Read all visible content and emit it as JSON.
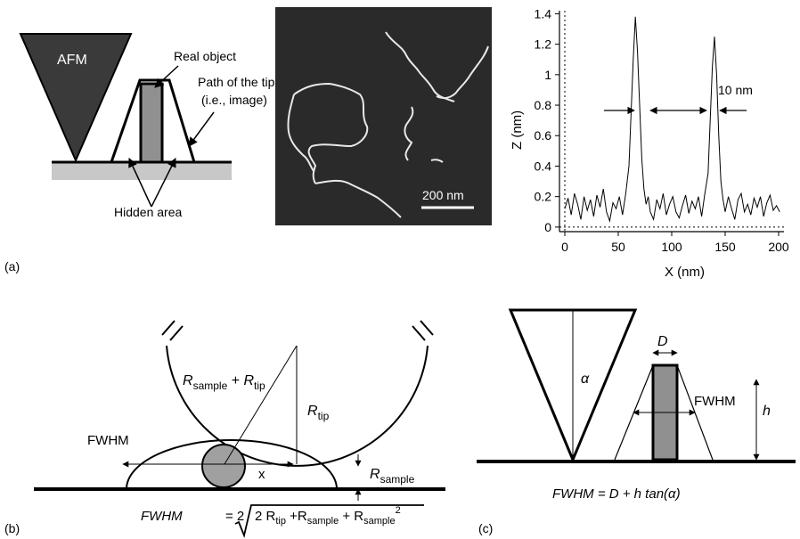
{
  "panel_labels": {
    "a": "(a)",
    "b": "(b)",
    "c": "(c)"
  },
  "panel_a": {
    "afm_label": "AFM",
    "real_object": "Real object",
    "path_of_tip_line1": "Path of the tip",
    "path_of_tip_line2": "(i.e., image)",
    "hidden_area": "Hidden area",
    "scale_bar": "200 nm",
    "profile_annotation": "10 nm",
    "colors": {
      "afm_tip": "#3a3a3a",
      "object": "#909090",
      "substrate": "#c8c8c8",
      "image_bg": "#2a2a2a",
      "strand": "#e6e6e6"
    }
  },
  "chart_data": {
    "type": "line",
    "title": "",
    "xlabel": "X (nm)",
    "ylabel": "Z (nm)",
    "xlim": [
      -5,
      205
    ],
    "ylim": [
      -0.03,
      1.42
    ],
    "xticks": [
      "0",
      "50",
      "100",
      "150",
      "200"
    ],
    "yticks": [
      "0",
      "0.2",
      "0.4",
      "0.6",
      "0.8",
      "1",
      "1.2",
      "1.4"
    ],
    "grid": false,
    "dotted_reference_lines": [
      "y=0",
      "x=0"
    ],
    "series": [
      {
        "x": [
          0,
          3,
          6,
          9,
          12,
          15,
          18,
          21,
          24,
          27,
          30,
          33,
          36,
          39,
          42,
          45,
          48,
          51,
          54,
          57,
          60,
          62,
          64,
          66,
          68,
          70,
          72,
          74,
          76,
          78,
          80,
          83,
          86,
          89,
          92,
          95,
          98,
          101,
          104,
          107,
          110,
          113,
          116,
          119,
          122,
          125,
          128,
          131,
          134,
          136,
          138,
          140,
          142,
          144,
          146,
          148,
          150,
          153,
          156,
          159,
          162,
          165,
          168,
          171,
          174,
          177,
          180,
          183,
          186,
          189,
          192,
          195,
          198,
          201
        ],
        "values": [
          0.12,
          0.19,
          0.08,
          0.22,
          0.15,
          0.05,
          0.2,
          0.11,
          0.18,
          0.07,
          0.21,
          0.13,
          0.25,
          0.1,
          0.04,
          0.16,
          0.12,
          0.2,
          0.08,
          0.22,
          0.4,
          0.75,
          1.1,
          1.38,
          1.15,
          0.8,
          0.45,
          0.25,
          0.15,
          0.2,
          0.1,
          0.05,
          0.18,
          0.12,
          0.22,
          0.08,
          0.15,
          0.2,
          0.1,
          0.06,
          0.14,
          0.21,
          0.09,
          0.17,
          0.12,
          0.2,
          0.07,
          0.22,
          0.35,
          0.7,
          1.05,
          1.25,
          1.0,
          0.6,
          0.3,
          0.18,
          0.1,
          0.2,
          0.12,
          0.05,
          0.18,
          0.22,
          0.1,
          0.15,
          0.08,
          0.19,
          0.13,
          0.2,
          0.07,
          0.16,
          0.21,
          0.11,
          0.14,
          0.1
        ]
      }
    ],
    "annotations": [
      "10 nm"
    ]
  },
  "panel_b": {
    "label_rsum_main1": "R",
    "label_rsum_sub1": "sample",
    "label_rsum_plus": " + ",
    "label_rsum_main2": "R",
    "label_rsum_sub2": "tip",
    "label_rtip_main": "R",
    "label_rtip_sub": "tip",
    "label_fwhm": "FWHM",
    "label_x": "x",
    "label_rsample_main": "R",
    "label_rsample_sub": "sample",
    "formula_lhs": "FWHM",
    "formula_eq": "= 2",
    "formula_term1": "2 R",
    "formula_term1_sub": "tip",
    "formula_term2": " +R",
    "formula_term2_sub": "sample",
    "formula_term3": " + R",
    "formula_term3_sub": "sample",
    "formula_term3_sup": "2"
  },
  "panel_c": {
    "label_d": "D",
    "label_alpha": "α",
    "label_fwhm": "FWHM",
    "label_h": "h",
    "formula": "FWHM = D + h tan(α)"
  }
}
